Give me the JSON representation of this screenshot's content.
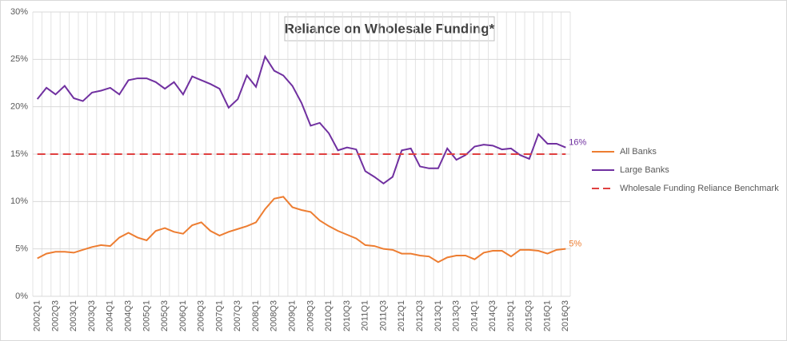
{
  "chart_data": {
    "type": "line",
    "title": "Reliance on Wholesale Funding*",
    "categories": [
      "2002Q1",
      null,
      "2002Q3",
      null,
      "2003Q1",
      null,
      "2003Q3",
      null,
      "2004Q1",
      null,
      "2004Q3",
      null,
      "2005Q1",
      null,
      "2005Q3",
      null,
      "2006Q1",
      null,
      "2006Q3",
      null,
      "2007Q1",
      null,
      "2007Q3",
      null,
      "2008Q1",
      null,
      "2008Q3",
      null,
      "2009Q1",
      null,
      "2009Q3",
      null,
      "2010Q1",
      null,
      "2010Q3",
      null,
      "2011Q1",
      null,
      "2011Q3",
      null,
      "2012Q1",
      null,
      "2012Q3",
      null,
      "2013Q1",
      null,
      "2013Q3",
      null,
      "2014Q1",
      null,
      "2014Q3",
      null,
      "2015Q1",
      null,
      "2015Q3",
      null,
      "2016Q1",
      null,
      "2016Q3"
    ],
    "series": [
      {
        "name": "All Banks",
        "color": "#ED7D31",
        "values": [
          4.0,
          4.5,
          4.7,
          4.7,
          4.6,
          4.9,
          5.2,
          5.4,
          5.3,
          6.2,
          6.7,
          6.2,
          5.9,
          6.9,
          7.2,
          6.8,
          6.6,
          7.5,
          7.8,
          6.9,
          6.4,
          6.8,
          7.1,
          7.4,
          7.8,
          9.2,
          10.3,
          10.5,
          9.4,
          9.1,
          8.9,
          8.0,
          7.4,
          6.9,
          6.5,
          6.1,
          5.4,
          5.3,
          5.0,
          4.9,
          4.5,
          4.5,
          4.3,
          4.2,
          3.6,
          4.1,
          4.3,
          4.3,
          3.9,
          4.6,
          4.8,
          4.8,
          4.2,
          4.9,
          4.9,
          4.8,
          4.5,
          4.9,
          5.0
        ],
        "value_labels": [
          null,
          null,
          null,
          null,
          null,
          null,
          null,
          null,
          null,
          null,
          null,
          null,
          null,
          null,
          null,
          null,
          null,
          null,
          null,
          null,
          null,
          null,
          null,
          null,
          null,
          null,
          null,
          null,
          null,
          null,
          null,
          null,
          null,
          null,
          null,
          null,
          null,
          null,
          null,
          null,
          null,
          null,
          null,
          null,
          null,
          null,
          null,
          null,
          null,
          null,
          null,
          null,
          null,
          null,
          null,
          null,
          null,
          null,
          "5%"
        ]
      },
      {
        "name": "Large Banks",
        "color": "#7030A0",
        "values": [
          20.8,
          22.0,
          21.3,
          22.2,
          20.9,
          20.6,
          21.5,
          21.7,
          22.0,
          21.3,
          22.8,
          23.0,
          23.0,
          22.6,
          21.9,
          22.6,
          21.3,
          23.2,
          22.8,
          22.4,
          21.9,
          19.9,
          20.8,
          23.3,
          22.1,
          25.3,
          23.8,
          23.3,
          22.2,
          20.4,
          18.0,
          18.3,
          17.2,
          15.4,
          15.7,
          15.5,
          13.2,
          12.6,
          11.9,
          12.6,
          15.4,
          15.6,
          13.7,
          13.5,
          13.5,
          15.6,
          14.4,
          14.9,
          15.8,
          16.0,
          15.9,
          15.5,
          15.6,
          14.9,
          14.5,
          17.1,
          16.1,
          16.1,
          15.7
        ],
        "value_labels": [
          null,
          null,
          null,
          null,
          null,
          null,
          null,
          null,
          null,
          null,
          null,
          null,
          null,
          null,
          null,
          null,
          null,
          null,
          null,
          null,
          null,
          null,
          null,
          null,
          null,
          null,
          null,
          null,
          null,
          null,
          null,
          null,
          null,
          null,
          null,
          null,
          null,
          null,
          null,
          null,
          null,
          null,
          null,
          null,
          null,
          null,
          null,
          null,
          null,
          null,
          null,
          null,
          null,
          null,
          null,
          null,
          null,
          null,
          "16%"
        ]
      },
      {
        "name": "Wholesale Funding Reliance Benchmark",
        "color": "#E04040",
        "dashed": true,
        "values": [
          15,
          15,
          15,
          15,
          15,
          15,
          15,
          15,
          15,
          15,
          15,
          15,
          15,
          15,
          15,
          15,
          15,
          15,
          15,
          15,
          15,
          15,
          15,
          15,
          15,
          15,
          15,
          15,
          15,
          15,
          15,
          15,
          15,
          15,
          15,
          15,
          15,
          15,
          15,
          15,
          15,
          15,
          15,
          15,
          15,
          15,
          15,
          15,
          15,
          15,
          15,
          15,
          15,
          15,
          15,
          15,
          15,
          15,
          15
        ]
      }
    ],
    "ylim": [
      0,
      30
    ],
    "yticks": [
      {
        "value": 0,
        "label": "0%"
      },
      {
        "value": 5,
        "label": "5%"
      },
      {
        "value": 10,
        "label": "10%"
      },
      {
        "value": 15,
        "label": "15%"
      },
      {
        "value": 20,
        "label": "20%"
      },
      {
        "value": 25,
        "label": "25%"
      },
      {
        "value": 30,
        "label": "30%"
      }
    ],
    "grid": true
  }
}
